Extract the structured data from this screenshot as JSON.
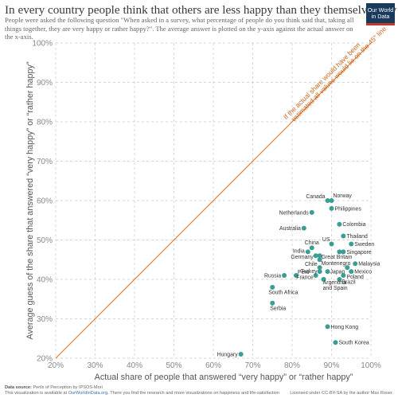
{
  "header": {
    "title": "In every country people think that others are less happy than they themselves say",
    "subtitle": "People were asked the following question \"When asked in a survey, what percentage of people do you think said that, taking all things together, they are very happy or rather happy?\". The average answer is plotted on the y-axis against the actual answer on the x-axis.",
    "logo_line1": "Our World",
    "logo_line2": "in Data"
  },
  "footer": {
    "source_label": "Data source:",
    "source": "Perils of Perception by IPSOS-Mori",
    "note_prefix": "This visualization is available at ",
    "note_link": "OurWorldinData.org",
    "note_suffix": ". There you find the research and more visualizations on happiness and life-satisfaction",
    "license_prefix": "Licensed under ",
    "license_link": "CC-BY-SA",
    "license_suffix": " by the author Max Roser."
  },
  "colors": {
    "point": "#3a9e95",
    "diagonal": "#e0701c",
    "annotation": "#c8631a",
    "grid": "#c8c8c8",
    "tick_label": "#888888",
    "axis_label": "#555555"
  },
  "chart_data": {
    "type": "scatter",
    "xlabel": "Actual share of people that answered “very happy” or “rather happy”",
    "ylabel": "Average guess of the share that answered “very happy” or “rather happy”",
    "xlim": [
      20,
      100
    ],
    "ylim": [
      20,
      100
    ],
    "x_ticks": [
      "20%",
      "30%",
      "40%",
      "50%",
      "60%",
      "70%",
      "80%",
      "90%",
      "100%"
    ],
    "y_ticks": [
      "20%",
      "30%",
      "40%",
      "50%",
      "60%",
      "70%",
      "80%",
      "90%",
      "100%"
    ],
    "grid": true,
    "reference_line": {
      "type": "y=x",
      "label_line1": "If the actual share would have been",
      "label_line2": "estimated all values would lie on the 45° line"
    },
    "points": [
      {
        "label": "Canada",
        "x": 89,
        "y": 60
      },
      {
        "label": "Norway",
        "x": 90,
        "y": 60
      },
      {
        "label": "Philippines",
        "x": 90,
        "y": 58
      },
      {
        "label": "Netherlands",
        "x": 85,
        "y": 57
      },
      {
        "label": "Australia",
        "x": 83,
        "y": 53
      },
      {
        "label": "Colombia",
        "x": 92,
        "y": 54
      },
      {
        "label": "Thailand",
        "x": 93,
        "y": 51
      },
      {
        "label": "US",
        "x": 90,
        "y": 49
      },
      {
        "label": "Sweden",
        "x": 95,
        "y": 49
      },
      {
        "label": "China",
        "x": 85,
        "y": 48
      },
      {
        "label": "India",
        "x": 84,
        "y": 47
      },
      {
        "label": "Singapore",
        "x": 93,
        "y": 47
      },
      {
        "label": "",
        "x": 92,
        "y": 47
      },
      {
        "label": "Great Britain",
        "x": 87,
        "y": 46
      },
      {
        "label": "Germany",
        "x": 86,
        "y": 46
      },
      {
        "label": "Montenegro",
        "x": 87,
        "y": 45
      },
      {
        "label": "Malaysia",
        "x": 96,
        "y": 44
      },
      {
        "label": "",
        "x": 94,
        "y": 43
      },
      {
        "label": "Chile",
        "x": 87,
        "y": 43
      },
      {
        "label": "Mexico",
        "x": 95,
        "y": 42
      },
      {
        "label": "Turkey",
        "x": 87,
        "y": 42
      },
      {
        "label": "Japan",
        "x": 89,
        "y": 42
      },
      {
        "label": "Poland",
        "x": 93,
        "y": 41
      },
      {
        "label": "Russia",
        "x": 78,
        "y": 41
      },
      {
        "label": "Peru",
        "x": 81,
        "y": 41
      },
      {
        "label": "France",
        "x": 86,
        "y": 41
      },
      {
        "label": "Argentina",
        "x": 88,
        "y": 40
      },
      {
        "label": "Brazil",
        "x": 92,
        "y": 40
      },
      {
        "label": "Spain",
        "x": 88,
        "y": 40
      },
      {
        "label": "South Africa",
        "x": 75,
        "y": 38
      },
      {
        "label": "Serbia",
        "x": 75,
        "y": 34
      },
      {
        "label": "Hong Kong",
        "x": 89,
        "y": 28
      },
      {
        "label": "South Korea",
        "x": 91,
        "y": 24
      },
      {
        "label": "Hungary",
        "x": 67,
        "y": 21
      }
    ],
    "extra_labels": [
      "and Spain"
    ]
  }
}
